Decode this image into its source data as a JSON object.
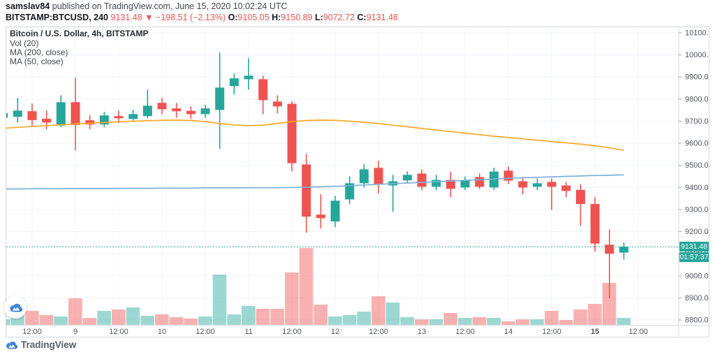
{
  "header": {
    "author": "samslav84",
    "published": " published on TradingView.com, June 15, 2020 10:02:24 UTC",
    "symbol": "BITSTAMP:BTCUSD, 240",
    "last_price": "9131.48",
    "direction_icon": "▼",
    "change": "−198.51 (−2.13%)",
    "ohlc": [
      {
        "label": "O:",
        "value": "9105.05"
      },
      {
        "label": "H:",
        "value": "9150.89"
      },
      {
        "label": "L:",
        "value": "9072.72"
      },
      {
        "label": "C:",
        "value": "9131.48"
      }
    ]
  },
  "legend": {
    "title": "Bitcoin / U.S. Dollar, 4h, BITSTAMP",
    "items": [
      "Vol (20)",
      "MA (200, close)",
      "MA (50, close)"
    ]
  },
  "price_label": {
    "value": "9131.48",
    "countdown": "01:57:37"
  },
  "footer": {
    "brand": "TradingView"
  },
  "colors": {
    "up": "#26a69a",
    "down": "#ef5350",
    "vol_up": "rgba(38,166,154,0.45)",
    "vol_down": "rgba(239,83,80,0.45)",
    "ma50": "#ffa726",
    "ma200": "#7db1d8",
    "grid": "#f0f3fa",
    "frame": "#d4d7dd",
    "axis_text": "#51555e",
    "tick_dash": "#9a9ea8",
    "last_price_line": "#26a69a",
    "badge_bg": "#26a69a",
    "brand_blue": "#2f7ed8"
  },
  "chart_data": {
    "type": "candlestick",
    "title": "Bitcoin / U.S. Dollar, 4h, BITSTAMP",
    "symbol": "BITSTAMP:BTCUSD",
    "interval": "240",
    "first_candle_time": "2020-06-08 04:00 UTC",
    "step_hours": 4,
    "price_axis_range": [
      8800,
      10100
    ],
    "price_ticks": [
      8800,
      8900,
      9000,
      9100,
      9200,
      9300,
      9400,
      9500,
      9600,
      9700,
      9800,
      9900,
      10000,
      10100
    ],
    "time_ticks": [
      {
        "i": 2,
        "label": "12:00",
        "bold": false
      },
      {
        "i": 5,
        "label": "9",
        "bold": false
      },
      {
        "i": 8,
        "label": "12:00",
        "bold": false
      },
      {
        "i": 11,
        "label": "10",
        "bold": false
      },
      {
        "i": 14,
        "label": "12:00",
        "bold": false
      },
      {
        "i": 17,
        "label": "11",
        "bold": false
      },
      {
        "i": 20,
        "label": "12:00",
        "bold": false
      },
      {
        "i": 23,
        "label": "12",
        "bold": false
      },
      {
        "i": 26,
        "label": "12:00",
        "bold": false
      },
      {
        "i": 29,
        "label": "13",
        "bold": false
      },
      {
        "i": 32,
        "label": "12:00",
        "bold": false
      },
      {
        "i": 35,
        "label": "14",
        "bold": false
      },
      {
        "i": 38,
        "label": "12:00",
        "bold": false
      },
      {
        "i": 41,
        "label": "15",
        "bold": true
      },
      {
        "i": 44,
        "label": "12:00",
        "bold": false
      }
    ],
    "candle_keys": [
      "open",
      "high",
      "low",
      "close",
      "volume_rel"
    ],
    "candles": [
      [
        9716,
        9741,
        9710,
        9736,
        8
      ],
      [
        9720,
        9805,
        9694,
        9748,
        35
      ],
      [
        9745,
        9780,
        9679,
        9705,
        20
      ],
      [
        9711,
        9748,
        9663,
        9694,
        14
      ],
      [
        9680,
        9817,
        9672,
        9786,
        12
      ],
      [
        9786,
        9897,
        9568,
        9683,
        38
      ],
      [
        9704,
        9726,
        9663,
        9685,
        10
      ],
      [
        9685,
        9742,
        9672,
        9726,
        20
      ],
      [
        9723,
        9748,
        9691,
        9713,
        22
      ],
      [
        9710,
        9751,
        9697,
        9732,
        25
      ],
      [
        9723,
        9843,
        9714,
        9770,
        13
      ],
      [
        9783,
        9805,
        9732,
        9754,
        15
      ],
      [
        9758,
        9783,
        9716,
        9745,
        11
      ],
      [
        9747,
        9767,
        9710,
        9732,
        9
      ],
      [
        9732,
        9774,
        9716,
        9758,
        12
      ],
      [
        9751,
        10010,
        9574,
        9852,
        72
      ],
      [
        9859,
        9916,
        9821,
        9894,
        15
      ],
      [
        9890,
        9985,
        9843,
        9906,
        27
      ],
      [
        9890,
        9906,
        9732,
        9795,
        23
      ],
      [
        9789,
        9817,
        9735,
        9767,
        23
      ],
      [
        9779,
        9790,
        9473,
        9510,
        75
      ],
      [
        9504,
        9552,
        9195,
        9268,
        110
      ],
      [
        9277,
        9369,
        9214,
        9261,
        29
      ],
      [
        9246,
        9362,
        9220,
        9340,
        12
      ],
      [
        9346,
        9451,
        9324,
        9419,
        14
      ],
      [
        9419,
        9505,
        9400,
        9482,
        19
      ],
      [
        9489,
        9521,
        9372,
        9416,
        41
      ],
      [
        9409,
        9457,
        9290,
        9428,
        32
      ],
      [
        9432,
        9473,
        9419,
        9457,
        11
      ],
      [
        9463,
        9482,
        9388,
        9403,
        8
      ],
      [
        9403,
        9457,
        9388,
        9434,
        8
      ],
      [
        9434,
        9472,
        9356,
        9394,
        17
      ],
      [
        9400,
        9450,
        9388,
        9431,
        10
      ],
      [
        9447,
        9463,
        9394,
        9403,
        11
      ],
      [
        9400,
        9489,
        9388,
        9472,
        10
      ],
      [
        9476,
        9495,
        9416,
        9431,
        5
      ],
      [
        9428,
        9447,
        9369,
        9400,
        8
      ],
      [
        9403,
        9441,
        9388,
        9419,
        8
      ],
      [
        9425,
        9441,
        9298,
        9403,
        20
      ],
      [
        9409,
        9425,
        9356,
        9384,
        7
      ],
      [
        9389,
        9415,
        9226,
        9325,
        22
      ],
      [
        9325,
        9357,
        9110,
        9146,
        30
      ],
      [
        9141,
        9210,
        8898,
        9100,
        60
      ],
      [
        9105.05,
        9150.89,
        9072.72,
        9131.48,
        10
      ]
    ],
    "ma50": [
      9668,
      9672,
      9676,
      9680,
      9684,
      9688,
      9691,
      9694,
      9697,
      9700,
      9702,
      9704,
      9705,
      9703,
      9698,
      9689,
      9683,
      9680,
      9682,
      9690,
      9698,
      9703,
      9705,
      9704,
      9700,
      9695,
      9689,
      9682,
      9675,
      9667,
      9660,
      9653,
      9646,
      9639,
      9632,
      9626,
      9620,
      9614,
      9608,
      9602,
      9596,
      9589,
      9579,
      9568
    ],
    "ma200": [
      9393,
      9393,
      9394,
      9394,
      9394,
      9395,
      9395,
      9395,
      9396,
      9396,
      9396,
      9397,
      9397,
      9397,
      9398,
      9398,
      9398,
      9399,
      9399,
      9399,
      9400,
      9401,
      9403,
      9405,
      9408,
      9411,
      9414,
      9417,
      9420,
      9423,
      9426,
      9429,
      9432,
      9435,
      9438,
      9441,
      9444,
      9446,
      9448,
      9450,
      9452,
      9454,
      9455,
      9457
    ],
    "last_price": 9131.48,
    "countdown": "01:57:37",
    "legend": [
      "Vol (20)",
      "MA (200, close)",
      "MA (50, close)"
    ],
    "grid": true,
    "x_axis_labels": [
      "12:00",
      "9",
      "12:00",
      "10",
      "12:00",
      "11",
      "12:00",
      "12",
      "12:00",
      "13",
      "12:00",
      "14",
      "12:00",
      "15",
      "12:00"
    ]
  }
}
